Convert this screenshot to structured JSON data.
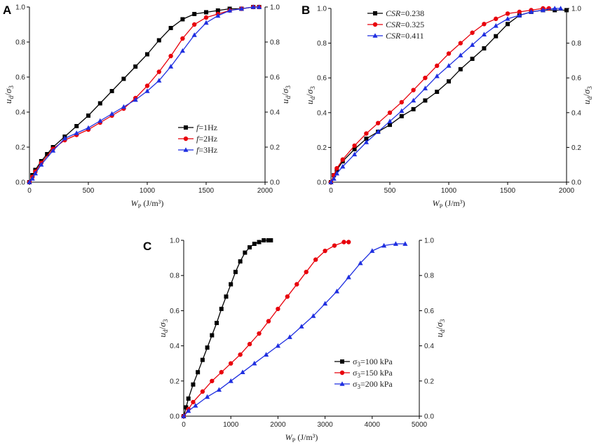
{
  "chart_data": [
    {
      "panel": "A",
      "type": "line",
      "xlabel": "W_P (J/m³)",
      "ylabel": "u_d/σ_3",
      "xlim": [
        0,
        2000
      ],
      "ylim": [
        0,
        1.0
      ],
      "xticks": [
        "0",
        "500",
        "1000",
        "1500",
        "2000"
      ],
      "yticks": [
        "0.0",
        "0.2",
        "0.4",
        "0.6",
        "0.8",
        "1.0"
      ],
      "grid": false,
      "legend_position": "center-right",
      "series": [
        {
          "name": "f=1Hz",
          "color": "#000000",
          "marker": "square",
          "x": [
            0,
            25,
            50,
            100,
            150,
            200,
            300,
            400,
            500,
            600,
            700,
            800,
            900,
            1000,
            1100,
            1200,
            1300,
            1400,
            1500,
            1600,
            1700,
            1800,
            1900,
            1950
          ],
          "y": [
            0,
            0.04,
            0.07,
            0.12,
            0.16,
            0.2,
            0.26,
            0.32,
            0.38,
            0.45,
            0.52,
            0.59,
            0.66,
            0.73,
            0.81,
            0.88,
            0.93,
            0.96,
            0.97,
            0.98,
            0.99,
            0.99,
            1.0,
            1.0
          ]
        },
        {
          "name": "f=2Hz",
          "color": "#e8000b",
          "marker": "circle",
          "x": [
            0,
            25,
            50,
            100,
            200,
            300,
            400,
            500,
            600,
            700,
            800,
            900,
            1000,
            1100,
            1200,
            1300,
            1400,
            1500,
            1600,
            1700,
            1800,
            1900,
            1950
          ],
          "y": [
            0,
            0.03,
            0.06,
            0.11,
            0.19,
            0.24,
            0.27,
            0.3,
            0.34,
            0.38,
            0.42,
            0.48,
            0.55,
            0.63,
            0.72,
            0.82,
            0.9,
            0.94,
            0.96,
            0.98,
            0.99,
            1.0,
            1.0
          ]
        },
        {
          "name": "f=3Hz",
          "color": "#1f2fe0",
          "marker": "triangle",
          "x": [
            0,
            25,
            50,
            100,
            200,
            300,
            400,
            500,
            600,
            700,
            800,
            900,
            1000,
            1100,
            1200,
            1300,
            1400,
            1500,
            1600,
            1700,
            1800,
            1900,
            1950
          ],
          "y": [
            0,
            0.02,
            0.05,
            0.1,
            0.18,
            0.25,
            0.28,
            0.31,
            0.35,
            0.39,
            0.43,
            0.47,
            0.52,
            0.58,
            0.66,
            0.75,
            0.84,
            0.91,
            0.95,
            0.98,
            0.99,
            1.0,
            1.0
          ]
        }
      ]
    },
    {
      "panel": "B",
      "type": "line",
      "xlabel": "W_P (J/m³)",
      "ylabel": "u_d/σ_3",
      "xlim": [
        0,
        2000
      ],
      "ylim": [
        0,
        1.0
      ],
      "xticks": [
        "0",
        "500",
        "1000",
        "1500",
        "2000"
      ],
      "yticks": [
        "0.0",
        "0.2",
        "0.4",
        "0.6",
        "0.8",
        "1.0"
      ],
      "grid": false,
      "legend_position": "top-left",
      "series": [
        {
          "name": "CSR=0.238",
          "color": "#000000",
          "marker": "square",
          "x": [
            0,
            25,
            50,
            100,
            200,
            300,
            400,
            500,
            600,
            700,
            800,
            900,
            1000,
            1100,
            1200,
            1300,
            1400,
            1500,
            1600,
            1700,
            1800,
            1900,
            2000
          ],
          "y": [
            0,
            0.04,
            0.07,
            0.12,
            0.19,
            0.25,
            0.29,
            0.33,
            0.38,
            0.42,
            0.47,
            0.52,
            0.58,
            0.65,
            0.71,
            0.77,
            0.84,
            0.91,
            0.96,
            0.98,
            0.99,
            0.99,
            0.99
          ]
        },
        {
          "name": "CSR=0.325",
          "color": "#e8000b",
          "marker": "circle",
          "x": [
            0,
            25,
            50,
            100,
            200,
            300,
            400,
            500,
            600,
            700,
            800,
            900,
            1000,
            1100,
            1200,
            1300,
            1400,
            1500,
            1600,
            1700,
            1800,
            1850
          ],
          "y": [
            0,
            0.04,
            0.08,
            0.13,
            0.21,
            0.28,
            0.34,
            0.4,
            0.46,
            0.53,
            0.6,
            0.67,
            0.74,
            0.8,
            0.86,
            0.91,
            0.94,
            0.97,
            0.98,
            0.99,
            1.0,
            1.0
          ]
        },
        {
          "name": "CSR=0.411",
          "color": "#1f2fe0",
          "marker": "triangle",
          "x": [
            0,
            25,
            50,
            100,
            200,
            300,
            400,
            500,
            600,
            700,
            800,
            900,
            1000,
            1100,
            1200,
            1300,
            1400,
            1500,
            1600,
            1700,
            1800,
            1900,
            1950
          ],
          "y": [
            0,
            0.02,
            0.05,
            0.09,
            0.16,
            0.23,
            0.29,
            0.35,
            0.41,
            0.47,
            0.54,
            0.61,
            0.67,
            0.73,
            0.79,
            0.85,
            0.9,
            0.94,
            0.96,
            0.98,
            0.99,
            1.0,
            1.0
          ]
        }
      ]
    },
    {
      "panel": "C",
      "type": "line",
      "xlabel": "W_P (J/m³)",
      "ylabel": "u_d/σ_3",
      "xlim": [
        0,
        5000
      ],
      "ylim": [
        0,
        1.0
      ],
      "xticks": [
        "0",
        "1000",
        "2000",
        "3000",
        "4000",
        "5000"
      ],
      "yticks": [
        "0.0",
        "0.2",
        "0.4",
        "0.6",
        "0.8",
        "1.0"
      ],
      "grid": false,
      "legend_position": "bottom-right",
      "series": [
        {
          "name": "σ3=100 kPa",
          "color": "#000000",
          "marker": "square",
          "x": [
            0,
            50,
            100,
            200,
            300,
            400,
            500,
            600,
            700,
            800,
            900,
            1000,
            1100,
            1200,
            1300,
            1400,
            1500,
            1600,
            1700,
            1800,
            1850
          ],
          "y": [
            0,
            0.05,
            0.1,
            0.18,
            0.25,
            0.32,
            0.39,
            0.46,
            0.53,
            0.61,
            0.68,
            0.75,
            0.82,
            0.88,
            0.93,
            0.96,
            0.98,
            0.99,
            1.0,
            1.0,
            1.0
          ]
        },
        {
          "name": "σ3=150 kPa",
          "color": "#e8000b",
          "marker": "circle",
          "x": [
            0,
            100,
            200,
            400,
            600,
            800,
            1000,
            1200,
            1400,
            1600,
            1800,
            2000,
            2200,
            2400,
            2600,
            2800,
            3000,
            3200,
            3400,
            3500
          ],
          "y": [
            0,
            0.04,
            0.08,
            0.14,
            0.2,
            0.25,
            0.3,
            0.35,
            0.41,
            0.47,
            0.54,
            0.61,
            0.68,
            0.75,
            0.82,
            0.89,
            0.94,
            0.97,
            0.99,
            0.99
          ]
        },
        {
          "name": "σ3=200 kPa",
          "color": "#1f2fe0",
          "marker": "triangle",
          "x": [
            0,
            100,
            250,
            500,
            750,
            1000,
            1250,
            1500,
            1750,
            2000,
            2250,
            2500,
            2750,
            3000,
            3250,
            3500,
            3750,
            4000,
            4250,
            4500,
            4700
          ],
          "y": [
            0,
            0.03,
            0.06,
            0.11,
            0.15,
            0.2,
            0.25,
            0.3,
            0.35,
            0.4,
            0.45,
            0.51,
            0.57,
            0.64,
            0.71,
            0.79,
            0.87,
            0.94,
            0.97,
            0.98,
            0.98
          ]
        }
      ]
    }
  ]
}
